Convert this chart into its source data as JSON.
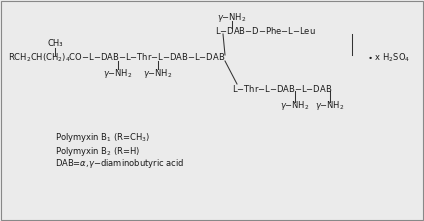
{
  "bg_color": "#ebebeb",
  "text_color": "#1a1a1a",
  "font_size": 6.0,
  "border_color": "#888888",
  "line_color": "#333333",
  "main_chain": "RCH₂CH(CH₂)₄CO–L–DAB–L–Thr–L–DAB–L–DAB",
  "top_chain": "L–DAB–D–Phe–L–Leu",
  "bottom_chain": "L–Thr–L–DAB–L–DAB",
  "gamma_nh2": "γ–NH₂",
  "ch3": "CH₃",
  "bullet": "• x H₂SO₄",
  "legend1": "Polymyxin B₁ (R=CH₃)",
  "legend2": "Polymyxin B₂ (R=H)",
  "legend3": "DAB=α,γ–diaminobutyric acid"
}
